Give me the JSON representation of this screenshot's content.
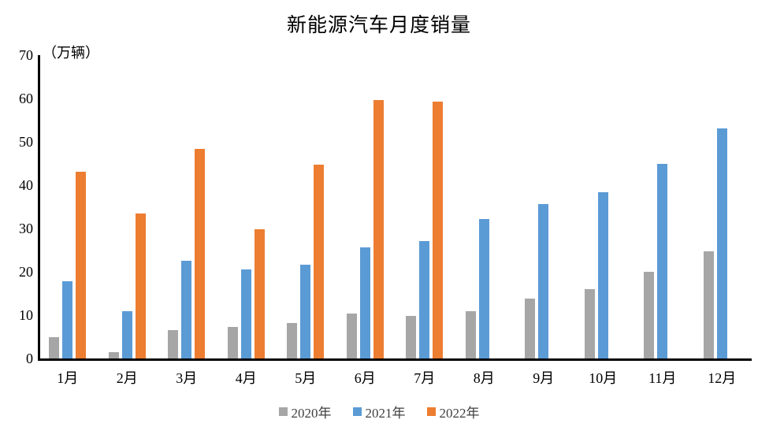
{
  "chart_data": {
    "type": "bar",
    "title": "新能源汽车月度销量",
    "unit_label": "（万辆）",
    "categories": [
      "1月",
      "2月",
      "3月",
      "4月",
      "5月",
      "6月",
      "7月",
      "8月",
      "9月",
      "10月",
      "11月",
      "12月"
    ],
    "series": [
      {
        "name": "2020年",
        "color": "#A6A6A6",
        "values": [
          5.0,
          1.5,
          6.5,
          7.2,
          8.2,
          10.4,
          9.8,
          10.9,
          13.8,
          16.0,
          20.0,
          24.8
        ]
      },
      {
        "name": "2021年",
        "color": "#5B9BD5",
        "values": [
          17.9,
          11.0,
          22.6,
          20.6,
          21.7,
          25.6,
          27.1,
          32.1,
          35.7,
          38.3,
          45.0,
          53.1
        ]
      },
      {
        "name": "2022年",
        "color": "#ED7D31",
        "values": [
          43.1,
          33.4,
          48.4,
          29.9,
          44.7,
          59.6,
          59.3,
          null,
          null,
          null,
          null,
          null
        ]
      }
    ],
    "ylim": [
      0,
      70
    ],
    "ytick_step": 10,
    "grid": false,
    "legend_position": "bottom",
    "axis_color": "#000000",
    "background_color": "#FFFFFF"
  }
}
